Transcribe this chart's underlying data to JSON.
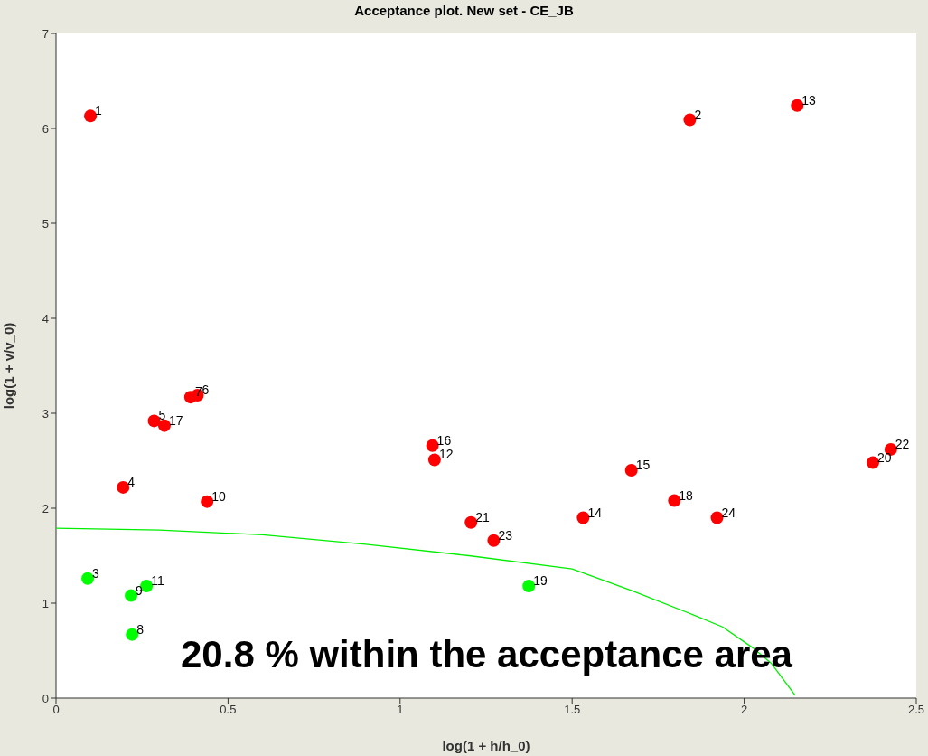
{
  "chart_data": {
    "type": "scatter",
    "title": "Acceptance plot. New set - CE_JB",
    "xlabel": "log(1 + h/h_0)",
    "ylabel": "log(1 + v/v_0)",
    "xlim": [
      0,
      2.5
    ],
    "xticks": [
      0,
      0.5,
      1,
      1.5,
      2,
      2.5
    ],
    "ylim": [
      0,
      7
    ],
    "yticks": [
      0,
      1,
      2,
      3,
      4,
      5,
      6,
      7
    ],
    "grid": false,
    "series": [
      {
        "marker": "circle",
        "color": "#ff0000",
        "x": [
          0.1,
          1.842,
          0.195,
          0.285,
          0.411,
          0.391,
          0.439,
          1.1,
          2.154,
          1.532,
          1.672,
          1.094,
          0.315,
          1.797,
          2.374,
          1.206,
          2.426,
          1.272,
          1.921
        ],
        "values": [
          6.13,
          6.09,
          2.22,
          2.92,
          3.19,
          3.17,
          2.07,
          2.51,
          6.24,
          1.9,
          2.4,
          2.66,
          2.87,
          2.08,
          2.48,
          1.85,
          2.62,
          1.66,
          1.9
        ]
      },
      {
        "marker": "circle",
        "color": "#00ff00",
        "x": [
          0.092,
          0.221,
          0.218,
          0.263,
          1.374
        ],
        "values": [
          1.26,
          0.67,
          1.08,
          1.18,
          1.18
        ]
      },
      {
        "type": "line",
        "color": "#00ee00",
        "x": [
          0,
          0.3,
          0.6,
          0.9,
          1.2,
          1.5,
          1.675,
          1.85,
          1.937,
          2.025,
          2.078,
          2.148
        ],
        "values": [
          1.79,
          1.77,
          1.72,
          1.62,
          1.5,
          1.36,
          1.13,
          0.88,
          0.75,
          0.53,
          0.37,
          0.03
        ]
      }
    ],
    "annotations": [
      {
        "text": "1",
        "x": 0.1,
        "y": 6.13
      },
      {
        "text": "2",
        "x": 1.842,
        "y": 6.09
      },
      {
        "text": "3",
        "x": 0.092,
        "y": 1.26
      },
      {
        "text": "4",
        "x": 0.195,
        "y": 2.22
      },
      {
        "text": "5",
        "x": 0.285,
        "y": 2.92
      },
      {
        "text": "6",
        "x": 0.411,
        "y": 3.19
      },
      {
        "text": "7",
        "x": 0.391,
        "y": 3.17
      },
      {
        "text": "8",
        "x": 0.221,
        "y": 0.67
      },
      {
        "text": "9",
        "x": 0.218,
        "y": 1.08
      },
      {
        "text": "10",
        "x": 0.439,
        "y": 2.07
      },
      {
        "text": "11",
        "x": 0.263,
        "y": 1.18
      },
      {
        "text": "12",
        "x": 1.1,
        "y": 2.51
      },
      {
        "text": "13",
        "x": 2.154,
        "y": 6.24
      },
      {
        "text": "14",
        "x": 1.532,
        "y": 1.9
      },
      {
        "text": "15",
        "x": 1.672,
        "y": 2.4
      },
      {
        "text": "16",
        "x": 1.094,
        "y": 2.66
      },
      {
        "text": "17",
        "x": 0.315,
        "y": 2.87
      },
      {
        "text": "18",
        "x": 1.797,
        "y": 2.08
      },
      {
        "text": "19",
        "x": 1.374,
        "y": 1.18
      },
      {
        "text": "20",
        "x": 2.374,
        "y": 2.48
      },
      {
        "text": "21",
        "x": 1.206,
        "y": 1.85
      },
      {
        "text": "22",
        "x": 2.426,
        "y": 2.62
      },
      {
        "text": "23",
        "x": 1.272,
        "y": 1.66
      },
      {
        "text": "24",
        "x": 1.921,
        "y": 1.9
      },
      "20.8 % within the acceptance area"
    ]
  }
}
